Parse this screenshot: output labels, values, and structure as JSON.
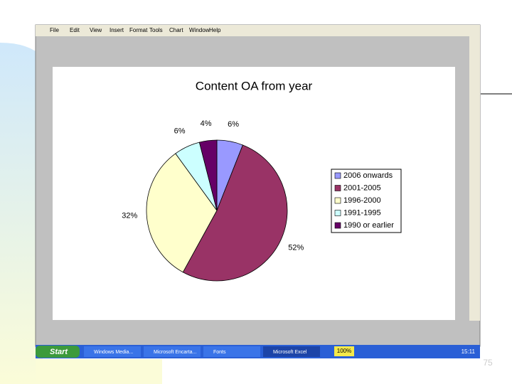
{
  "window": {
    "menu": [
      "File",
      "Edit",
      "View",
      "Insert",
      "Format",
      "Tools",
      "Chart",
      "Window",
      "Help"
    ]
  },
  "taskbar": {
    "start": "Start",
    "items": [
      "Windows Media...",
      "Microsoft Encarta...",
      "Fonts",
      "Microsoft Excel"
    ],
    "zoom": "100%",
    "clock": "15:11"
  },
  "slide": {
    "page_number": "75"
  },
  "chart_data": {
    "type": "pie",
    "title": "Content OA from year",
    "categories": [
      "2006 onwards",
      "2001-2005",
      "1996-2000",
      "1991-1995",
      "1990 or earlier"
    ],
    "values": [
      6,
      52,
      32,
      6,
      4
    ],
    "value_labels": [
      "6%",
      "52%",
      "32%",
      "6%",
      "4%"
    ],
    "colors": [
      "#9999ff",
      "#993366",
      "#ffffcc",
      "#ccffff",
      "#660066"
    ],
    "legend": "right"
  }
}
